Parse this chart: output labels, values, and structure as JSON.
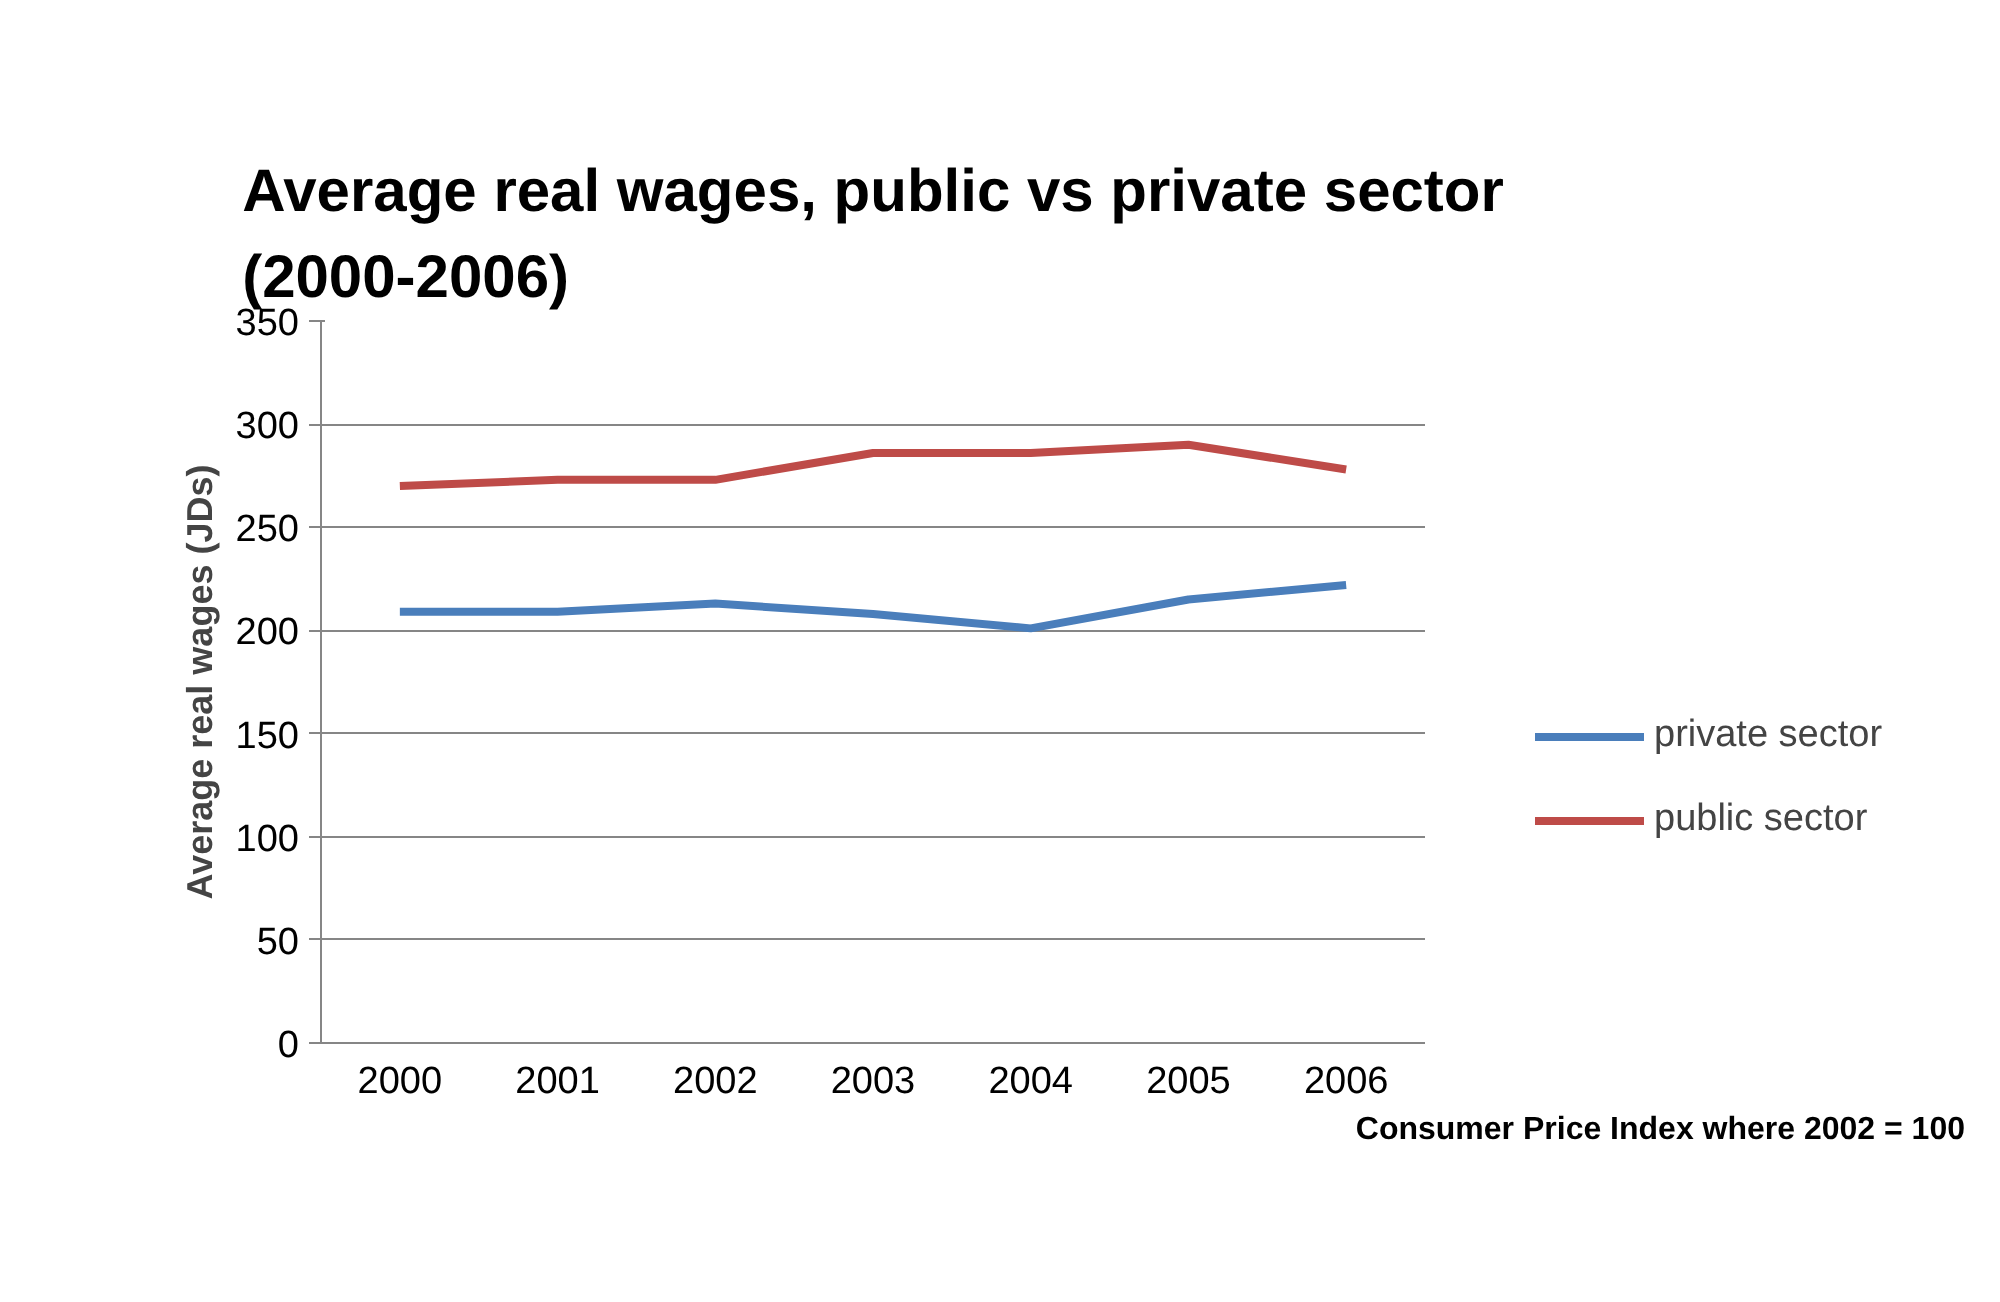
{
  "chart_data": {
    "type": "line",
    "title": "Average real wages, public vs private sector\n(2000-2006)",
    "ylabel": "Average real wages (JDs)",
    "categories": [
      "2000",
      "2001",
      "2002",
      "2003",
      "2004",
      "2005",
      "2006"
    ],
    "series": [
      {
        "name": "private sector",
        "color": "#4a7ebb",
        "values": [
          209,
          209,
          213,
          208,
          201,
          215,
          222
        ]
      },
      {
        "name": "public sector",
        "color": "#be4b48",
        "values": [
          270,
          273,
          273,
          286,
          286,
          290,
          278
        ]
      }
    ],
    "ylim": [
      0,
      350
    ],
    "yticks": [
      0,
      50,
      100,
      150,
      200,
      250,
      300,
      350
    ],
    "grid": "y",
    "legend": "right",
    "marker": "none",
    "line_style": "solid",
    "annotations": [
      "Consumer Price Index where 2002 = 100"
    ]
  }
}
